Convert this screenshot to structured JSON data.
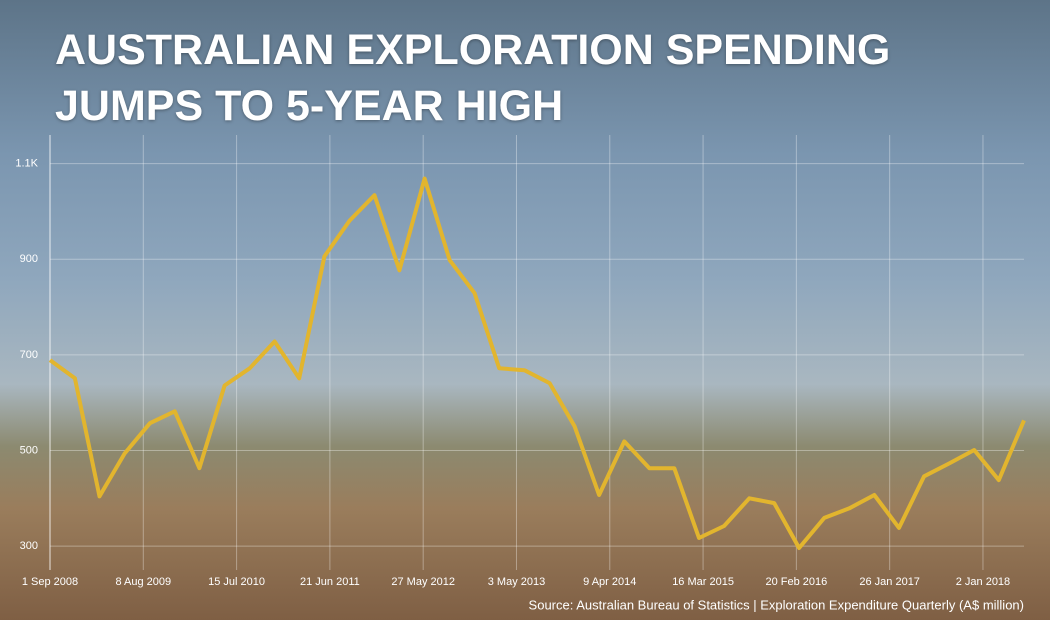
{
  "chart_data": {
    "type": "line",
    "title": "AUSTRALIAN EXPLORATION SPENDING JUMPS TO 5-YEAR HIGH",
    "source": "Source: Australian Bureau of Statistics | Exploration Expenditure Quarterly (A$ million)",
    "x": [
      "2008-09-01",
      "2008-12-01",
      "2009-03-01",
      "2009-06-01",
      "2009-09-01",
      "2009-12-01",
      "2010-03-01",
      "2010-06-01",
      "2010-09-01",
      "2010-12-01",
      "2011-03-01",
      "2011-06-01",
      "2011-09-01",
      "2011-12-01",
      "2012-03-01",
      "2012-06-01",
      "2012-09-01",
      "2012-12-01",
      "2013-03-01",
      "2013-06-01",
      "2013-09-01",
      "2013-12-01",
      "2014-03-01",
      "2014-06-01",
      "2014-09-01",
      "2014-12-01",
      "2015-03-01",
      "2015-06-01",
      "2015-09-01",
      "2015-12-01",
      "2016-03-01",
      "2016-06-01",
      "2016-09-01",
      "2016-12-01",
      "2017-03-01",
      "2017-06-01",
      "2017-09-01",
      "2017-12-01",
      "2018-03-01",
      "2018-06-01"
    ],
    "series": [
      {
        "name": "Exploration Expenditure",
        "color": "#e2b52e",
        "values": [
          689,
          651,
          404,
          494,
          557,
          582,
          463,
          636,
          672,
          728,
          651,
          906,
          981,
          1034,
          877,
          1069,
          898,
          829,
          672,
          668,
          641,
          551,
          407,
          519,
          463,
          463,
          317,
          342,
          400,
          390,
          296,
          359,
          379,
          407,
          338,
          446,
          473,
          501,
          438,
          563
        ]
      }
    ],
    "xlim": [
      "2008-09-01",
      "2018-06-01"
    ],
    "xticks": [
      {
        "value": "2008-09-01",
        "label": "1 Sep 2008"
      },
      {
        "value": "2009-08-08",
        "label": "8 Aug 2009"
      },
      {
        "value": "2010-07-15",
        "label": "15 Jul 2010"
      },
      {
        "value": "2011-06-21",
        "label": "21 Jun 2011"
      },
      {
        "value": "2012-05-27",
        "label": "27 May 2012"
      },
      {
        "value": "2013-05-03",
        "label": "3 May 2013"
      },
      {
        "value": "2014-04-09",
        "label": "9 Apr 2014"
      },
      {
        "value": "2015-03-16",
        "label": "16 Mar 2015"
      },
      {
        "value": "2016-02-20",
        "label": "20 Feb 2016"
      },
      {
        "value": "2017-01-26",
        "label": "26 Jan 2017"
      },
      {
        "value": "2018-01-02",
        "label": "2 Jan 2018"
      }
    ],
    "ylim": [
      250,
      1160
    ],
    "yticks": [
      300,
      500,
      700,
      900,
      {
        "value": 1100,
        "label": "1.1K"
      }
    ],
    "grid": true
  }
}
